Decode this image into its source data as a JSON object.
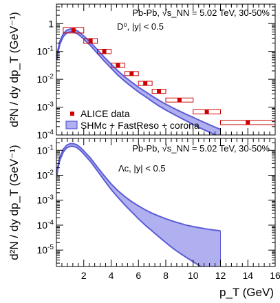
{
  "chart_data": [
    {
      "type": "scatter",
      "panel": "top",
      "ylabel": "d²N / dy dp_T (GeV⁻¹)",
      "y_scale": "log",
      "xlim": [
        0,
        16
      ],
      "ylim": [
        0.0001,
        5
      ],
      "info_lines": [
        "Pb-Pb, √s_NN = 5.02 TeV, 30-50%",
        "D⁰, |y| < 0.5"
      ],
      "legend": {
        "placement": "bottom-left",
        "entries": [
          {
            "label": "ALICE data",
            "marker": "square"
          },
          {
            "label": "SHMc + FastReso + corona",
            "marker": "band"
          }
        ]
      },
      "series": [
        {
          "name": "ALICE data",
          "color": "#cc0000",
          "points": [
            {
              "x": 1.25,
              "y": 0.58,
              "xerr": 0.75,
              "ylo": 0.46,
              "yhi": 0.73
            },
            {
              "x": 2.5,
              "y": 0.24,
              "xerr": 0.5,
              "ylo": 0.195,
              "yhi": 0.29
            },
            {
              "x": 3.5,
              "y": 0.1,
              "xerr": 0.5,
              "ylo": 0.083,
              "yhi": 0.12
            },
            {
              "x": 4.5,
              "y": 0.032,
              "xerr": 0.5,
              "ylo": 0.0265,
              "yhi": 0.038
            },
            {
              "x": 5.5,
              "y": 0.016,
              "xerr": 0.5,
              "ylo": 0.0135,
              "yhi": 0.019
            },
            {
              "x": 6.5,
              "y": 0.0072,
              "xerr": 0.5,
              "ylo": 0.006,
              "yhi": 0.0085
            },
            {
              "x": 7.5,
              "y": 0.0037,
              "xerr": 0.5,
              "ylo": 0.0031,
              "yhi": 0.0044
            },
            {
              "x": 9.0,
              "y": 0.0018,
              "xerr": 1.0,
              "ylo": 0.00152,
              "yhi": 0.00213
            },
            {
              "x": 11.0,
              "y": 0.00068,
              "xerr": 1.0,
              "ylo": 0.00057,
              "yhi": 0.00081
            },
            {
              "x": 14.0,
              "y": 0.00028,
              "xerr": 2.0,
              "ylo": 0.000235,
              "yhi": 0.000335
            }
          ]
        },
        {
          "name": "SHMc + FastReso + corona",
          "type": "band",
          "color": "#5b5bd6",
          "fill": "#b0b0f0",
          "x": [
            0.05,
            0.1,
            0.25,
            0.5,
            0.75,
            1.0,
            1.25,
            1.5,
            1.75,
            2.0,
            2.5,
            3.0,
            3.5,
            4.0,
            4.5,
            5.0,
            5.5,
            6.0,
            6.5,
            7.0,
            7.5,
            8.0,
            8.5,
            9.0,
            9.5,
            10.0,
            10.5,
            11.0,
            11.5,
            12.0
          ],
          "lo": [
            0.05,
            0.085,
            0.18,
            0.34,
            0.46,
            0.51,
            0.5,
            0.44,
            0.36,
            0.28,
            0.16,
            0.085,
            0.045,
            0.025,
            0.014,
            0.0085,
            0.0054,
            0.0035,
            0.0024,
            0.0016,
            0.0011,
            0.00079,
            0.00058,
            0.00043,
            0.00032,
            0.00024,
            0.00018,
            0.000138,
            0.000107,
            8.3e-05
          ],
          "hi": [
            0.065,
            0.11,
            0.23,
            0.43,
            0.58,
            0.64,
            0.63,
            0.56,
            0.46,
            0.36,
            0.21,
            0.115,
            0.062,
            0.035,
            0.02,
            0.0122,
            0.0079,
            0.0052,
            0.0036,
            0.0025,
            0.00175,
            0.00128,
            0.00095,
            0.00072,
            0.00055,
            0.00043,
            0.00033,
            0.000257,
            0.0002,
            0.000158
          ]
        }
      ]
    },
    {
      "type": "area",
      "panel": "bottom",
      "xlabel": "p_T (GeV)",
      "ylabel": "d²N / dy dp_T (GeV⁻¹)",
      "y_scale": "log",
      "xlim": [
        0,
        16
      ],
      "ylim": [
        2.2e-06,
        0.3
      ],
      "info_lines": [
        "Pb-Pb, √s_NN = 5.02 TeV, 30-50%",
        "Λc, |y| < 0.5"
      ],
      "series": [
        {
          "name": "SHMc + FastReso + corona",
          "type": "band",
          "color": "#5b5bd6",
          "fill": "#b0b0f0",
          "x": [
            0.05,
            0.1,
            0.25,
            0.5,
            0.75,
            1.0,
            1.25,
            1.5,
            1.75,
            2.0,
            2.5,
            3.0,
            3.5,
            4.0,
            4.5,
            5.0,
            5.5,
            6.0,
            6.5,
            7.0,
            7.5,
            8.0,
            8.5,
            9.0,
            9.5,
            10.0,
            10.5,
            11.0,
            11.5,
            12.0
          ],
          "lo": [
            0.01,
            0.017,
            0.04,
            0.085,
            0.125,
            0.145,
            0.145,
            0.128,
            0.1,
            0.072,
            0.035,
            0.015,
            0.0063,
            0.0027,
            0.0013,
            0.00065,
            0.00034,
            0.00018,
            0.0001,
            5.8e-05,
            3.4e-05,
            2e-05,
            1.2e-05,
            7.7e-06,
            5.1e-06,
            3.4e-06,
            2.3e-06,
            1.6e-06,
            1.1e-06,
            7.5e-07
          ],
          "hi": [
            0.013,
            0.022,
            0.052,
            0.11,
            0.16,
            0.185,
            0.185,
            0.165,
            0.13,
            0.095,
            0.048,
            0.021,
            0.0095,
            0.0045,
            0.0024,
            0.0014,
            0.00088,
            0.00059,
            0.00041,
            0.0003,
            0.00023,
            0.00018,
            0.000145,
            0.00012,
            0.0001,
            8.8e-05,
            7.8e-05,
            7e-05,
            6.4e-05,
            5.9e-05
          ]
        }
      ]
    }
  ]
}
